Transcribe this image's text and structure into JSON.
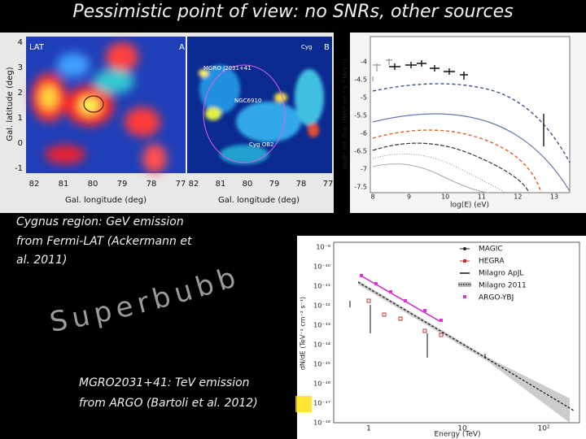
{
  "title": "Pessimistic point of view: no SNRs, other sources",
  "caption_top": [
    "Cygnus region: GeV emission",
    "from Fermi-LAT (Ackermann et",
    "al. 2011)"
  ],
  "wordart": "Superbubbles",
  "caption_bottom": [
    "MGRO2031+41: TeV emission",
    "from ARGO (Bartoli et al. 2012)"
  ],
  "fermi_map": {
    "panel_a": "A",
    "panel_b": "B",
    "instrument": "LAT",
    "y_label": "Gal. latitude (deg)",
    "x_label_a": "Gal. longitude (deg)",
    "x_label_b": "Gal. longitude (deg)",
    "yticks": [
      "4",
      "3",
      "2",
      "1",
      "0",
      "-1"
    ],
    "xticks_a": [
      "82",
      "81",
      "80",
      "79",
      "78",
      "77"
    ],
    "xticks_b": [
      "82",
      "81",
      "80",
      "79",
      "78",
      "77"
    ],
    "labels": [
      "MGRO J2031+41",
      "NGC6910",
      "Cyg OB2",
      "Cyg"
    ]
  },
  "sed_plot": {
    "x_label": "log(E) (eV)",
    "y_label": "log(E² diff. flux) (MeV² cm⁻² s⁻¹ MeV⁻¹)",
    "xticks": [
      "8",
      "9",
      "10",
      "11",
      "12",
      "13"
    ],
    "yticks": [
      "-4",
      "-4.5",
      "-5",
      "-5.5",
      "-6",
      "-6.5",
      "-7",
      "-7.5"
    ]
  },
  "tev_plot": {
    "x_label": "Energy (TeV)",
    "y_label": "dN/dE (TeV⁻¹ cm⁻² s⁻¹)",
    "xticks": [
      "1",
      "10",
      "10²"
    ],
    "yticks": [
      "10⁻⁹",
      "10⁻¹⁰",
      "10⁻¹¹",
      "10⁻¹²",
      "10⁻¹³",
      "10⁻¹⁴",
      "10⁻¹⁵",
      "10⁻¹⁶",
      "10⁻¹⁷",
      "10⁻¹⁸"
    ],
    "legend": [
      "MAGIC",
      "HEGRA",
      "Milagro ApJL",
      "Milagro 2011",
      "ARGO-YBJ"
    ]
  }
}
